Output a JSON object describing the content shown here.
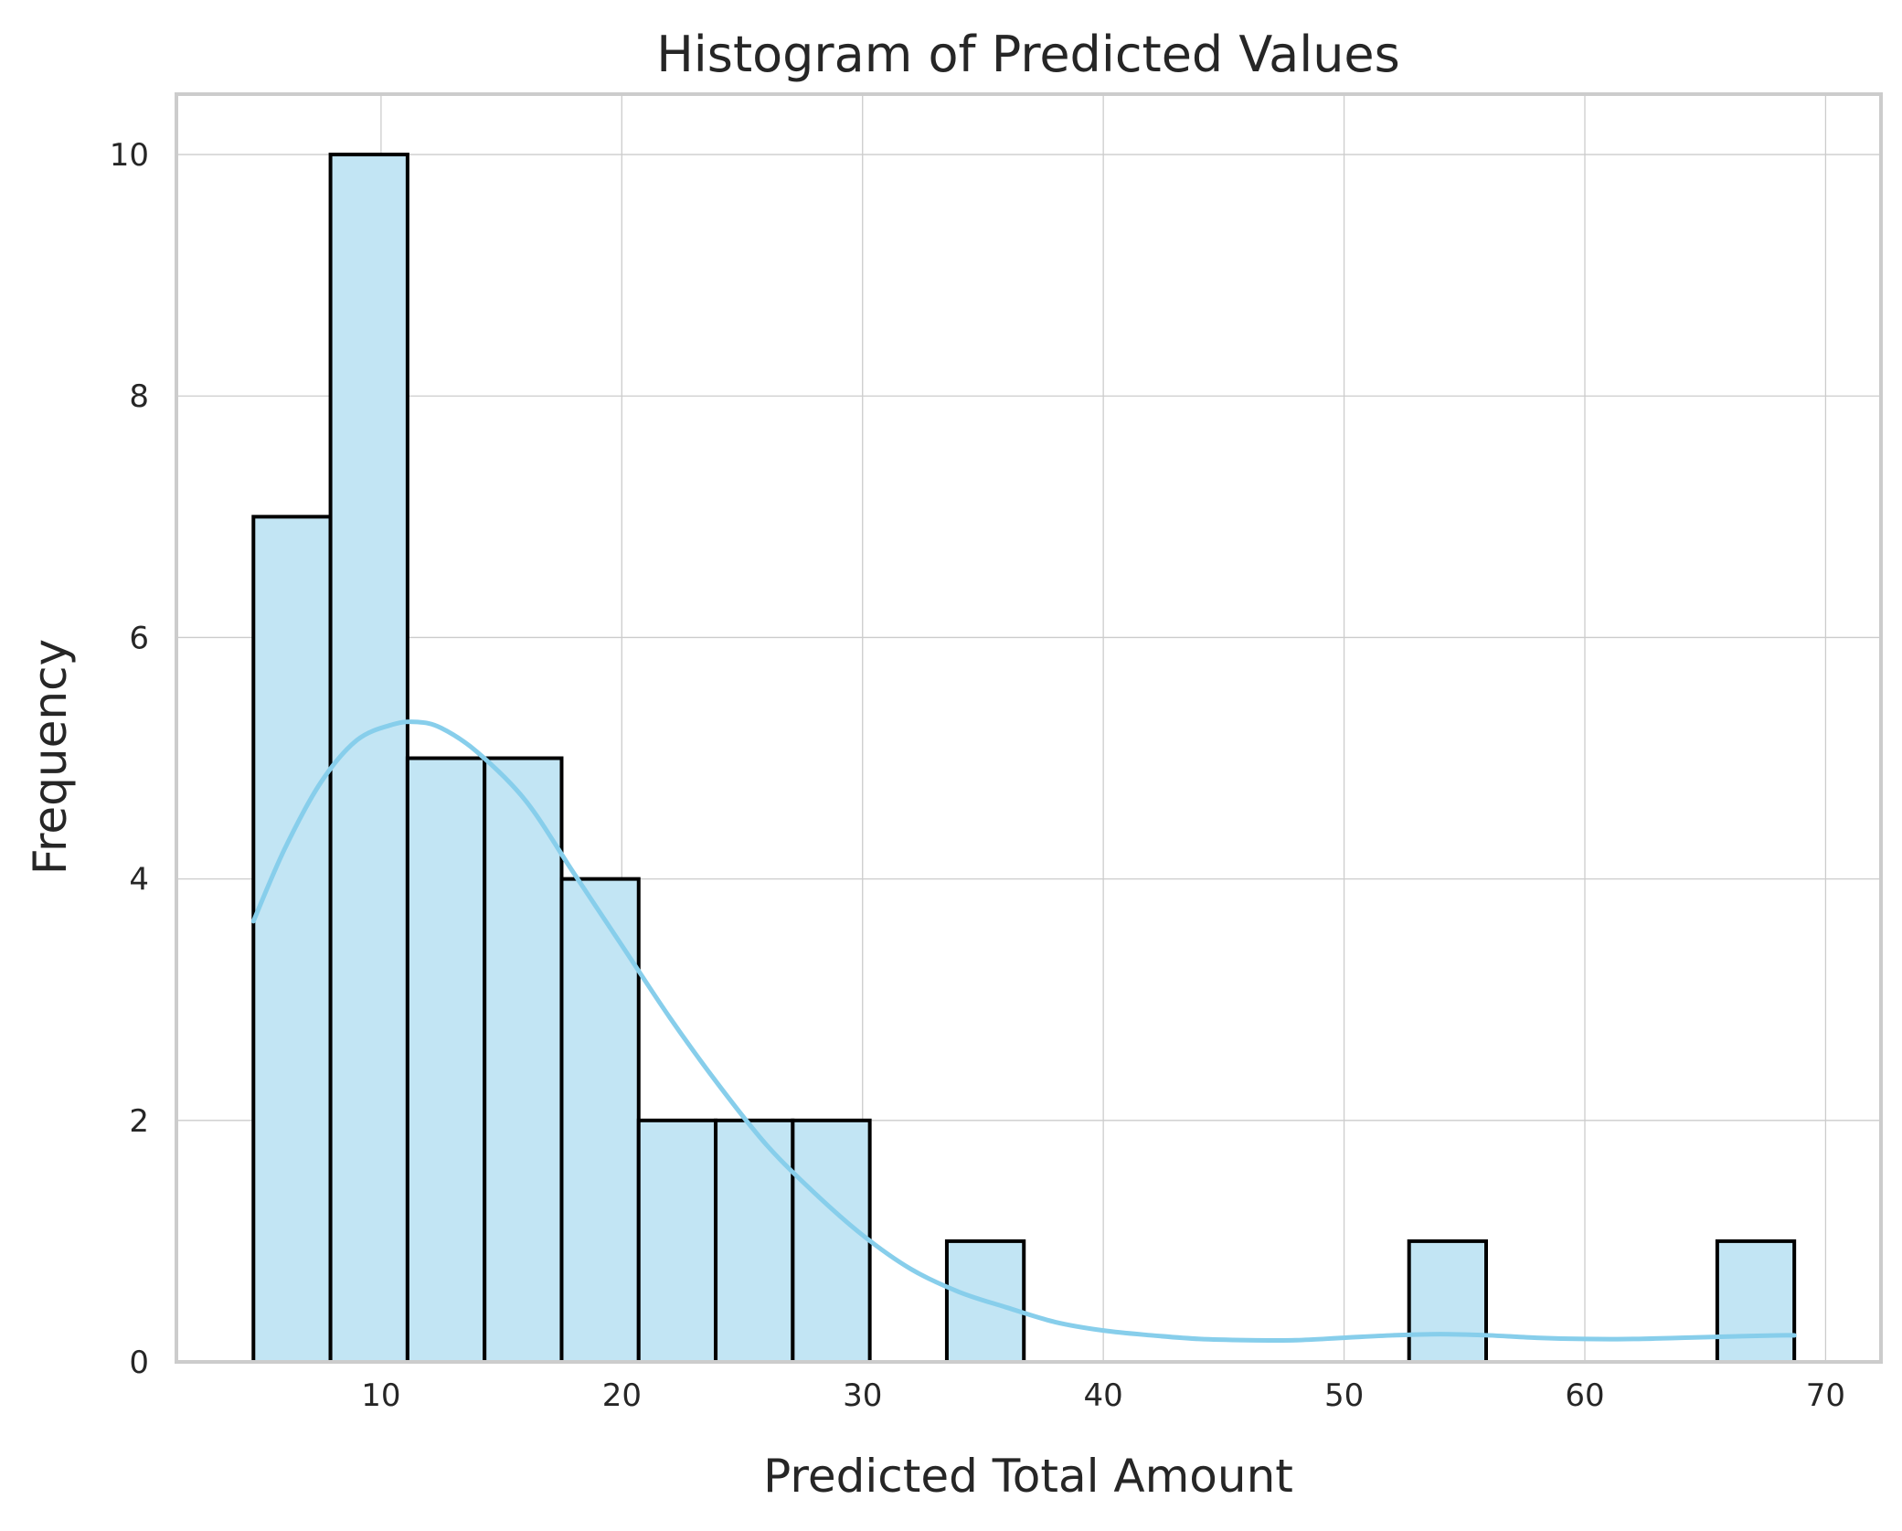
{
  "chart_data": {
    "type": "bar",
    "title": "Histogram of Predicted Values",
    "xlabel": "Predicted Total Amount",
    "ylabel": "Frequency",
    "xlim": [
      1.5,
      72.3
    ],
    "ylim": [
      0,
      10.5
    ],
    "xticks": [
      10,
      20,
      30,
      40,
      50,
      60,
      70
    ],
    "yticks": [
      0,
      2,
      4,
      6,
      8,
      10
    ],
    "grid": true,
    "bar_fill": "#c2e5f4",
    "bar_edge": "#000000",
    "kde_color": "#87ceeb",
    "bins": [
      {
        "x0": 4.7,
        "x1": 7.9,
        "count": 7
      },
      {
        "x0": 7.9,
        "x1": 11.1,
        "count": 10
      },
      {
        "x0": 11.1,
        "x1": 14.3,
        "count": 5
      },
      {
        "x0": 14.3,
        "x1": 17.5,
        "count": 5
      },
      {
        "x0": 17.5,
        "x1": 20.7,
        "count": 4
      },
      {
        "x0": 20.7,
        "x1": 23.9,
        "count": 2
      },
      {
        "x0": 23.9,
        "x1": 27.1,
        "count": 2
      },
      {
        "x0": 27.1,
        "x1": 30.3,
        "count": 2
      },
      {
        "x0": 30.3,
        "x1": 33.5,
        "count": 0
      },
      {
        "x0": 33.5,
        "x1": 36.7,
        "count": 1
      },
      {
        "x0": 36.7,
        "x1": 39.9,
        "count": 0
      },
      {
        "x0": 39.9,
        "x1": 43.1,
        "count": 0
      },
      {
        "x0": 43.1,
        "x1": 46.3,
        "count": 0
      },
      {
        "x0": 46.3,
        "x1": 49.5,
        "count": 0
      },
      {
        "x0": 49.5,
        "x1": 52.7,
        "count": 0
      },
      {
        "x0": 52.7,
        "x1": 55.9,
        "count": 1
      },
      {
        "x0": 55.9,
        "x1": 59.1,
        "count": 0
      },
      {
        "x0": 59.1,
        "x1": 62.3,
        "count": 0
      },
      {
        "x0": 62.3,
        "x1": 65.5,
        "count": 0
      },
      {
        "x0": 65.5,
        "x1": 68.7,
        "count": 1
      }
    ],
    "kde": {
      "x": [
        4.7,
        6,
        7.5,
        9,
        10.5,
        11.5,
        12.5,
        14,
        16,
        18,
        20,
        22,
        24,
        26,
        28,
        30,
        32,
        34,
        36,
        38,
        40,
        42,
        44,
        46,
        48,
        50,
        52,
        54,
        56,
        58,
        60,
        62,
        64,
        66,
        68,
        68.7
      ],
      "y": [
        3.65,
        4.25,
        4.8,
        5.15,
        5.28,
        5.3,
        5.25,
        5.05,
        4.65,
        4.05,
        3.45,
        2.85,
        2.3,
        1.8,
        1.4,
        1.05,
        0.77,
        0.58,
        0.45,
        0.33,
        0.26,
        0.22,
        0.19,
        0.18,
        0.18,
        0.2,
        0.22,
        0.23,
        0.22,
        0.2,
        0.19,
        0.19,
        0.2,
        0.21,
        0.22,
        0.22
      ]
    }
  }
}
